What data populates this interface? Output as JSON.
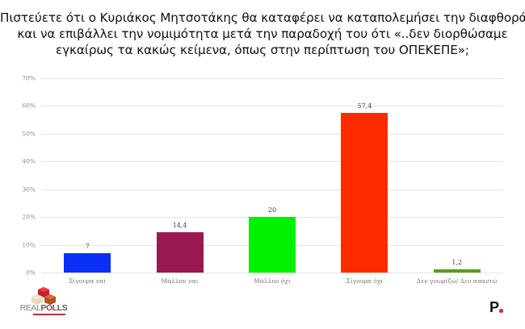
{
  "title": {
    "lines": [
      "Πιστεύετε ότι ο Κυριάκος Μητσοτάκης θα καταφέρει να καταπολεμήσει την διαφθορά",
      "και να επιβάλλει την νομιμότητα μετά την παραδοχή του ότι «..δεν διορθώσαμε",
      "εγκαίρως τα κακώς κείμενα, όπως στην περίπτωση του ΟΠΕΚΕΠΕ»;"
    ]
  },
  "chart_data": {
    "type": "bar",
    "title": "Πιστεύετε ότι ο Κυριάκος Μητσοτάκης θα καταφέρει να καταπολεμήσει την διαφθορά και να επιβάλλει την νομιμότητα μετά την παραδοχή του ότι «..δεν διορθώσαμε εγκαίρως τα κακώς κείμενα, όπως στην περίπτωση του ΟΠΕΚΕΠΕ»;",
    "categories": [
      "Σίγουρα ναι",
      "Μάλλον ναι",
      "Μάλλον όχι",
      "Σίγουρα όχι",
      "Δεν γνωρίζω/ Δεν απαντώ"
    ],
    "values": [
      7,
      14.4,
      20,
      57.4,
      1.2
    ],
    "value_labels": [
      "7",
      "14,4",
      "20",
      "57,4",
      "1,2"
    ],
    "colors": [
      "#0a2ff5",
      "#99184f",
      "#00f000",
      "#ff2a00",
      "#55a01c"
    ],
    "xlabel": "",
    "ylabel": "",
    "ylim": [
      0,
      70
    ],
    "yticks": [
      "0%",
      "10%",
      "20%",
      "30%",
      "40%",
      "50%",
      "60%",
      "70%"
    ],
    "grid": true,
    "legend": "none"
  },
  "logos": {
    "left": {
      "part1": "REAL",
      "part2": "POLLS"
    },
    "right": {
      "letter": "P"
    }
  }
}
